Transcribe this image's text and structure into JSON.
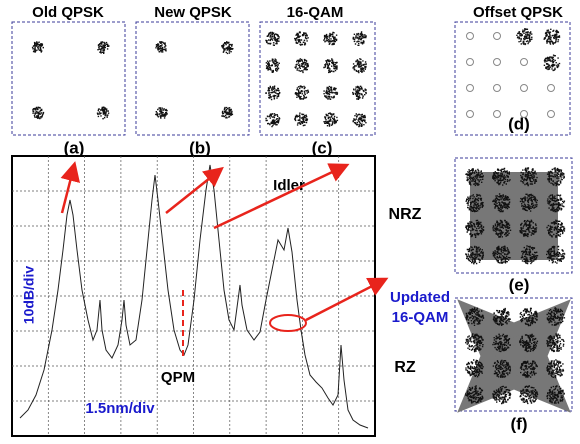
{
  "panels": [
    {
      "title": "Old QPSK",
      "label": "(a)"
    },
    {
      "title": "New QPSK",
      "label": "(b)"
    },
    {
      "title": "16-QAM",
      "label": "(c)"
    },
    {
      "title": "Offset QPSK",
      "label": "(d)"
    },
    {
      "title": "NRZ",
      "label": "(e)"
    },
    {
      "title": "RZ",
      "label": "(f)"
    }
  ],
  "spectrum": {
    "idler": "Idler",
    "qpm": "QPM",
    "y_scale": "10dB/div",
    "x_scale": "1.5nm/div"
  },
  "annotation": {
    "line1": "Updated",
    "line2": "16-QAM"
  }
}
